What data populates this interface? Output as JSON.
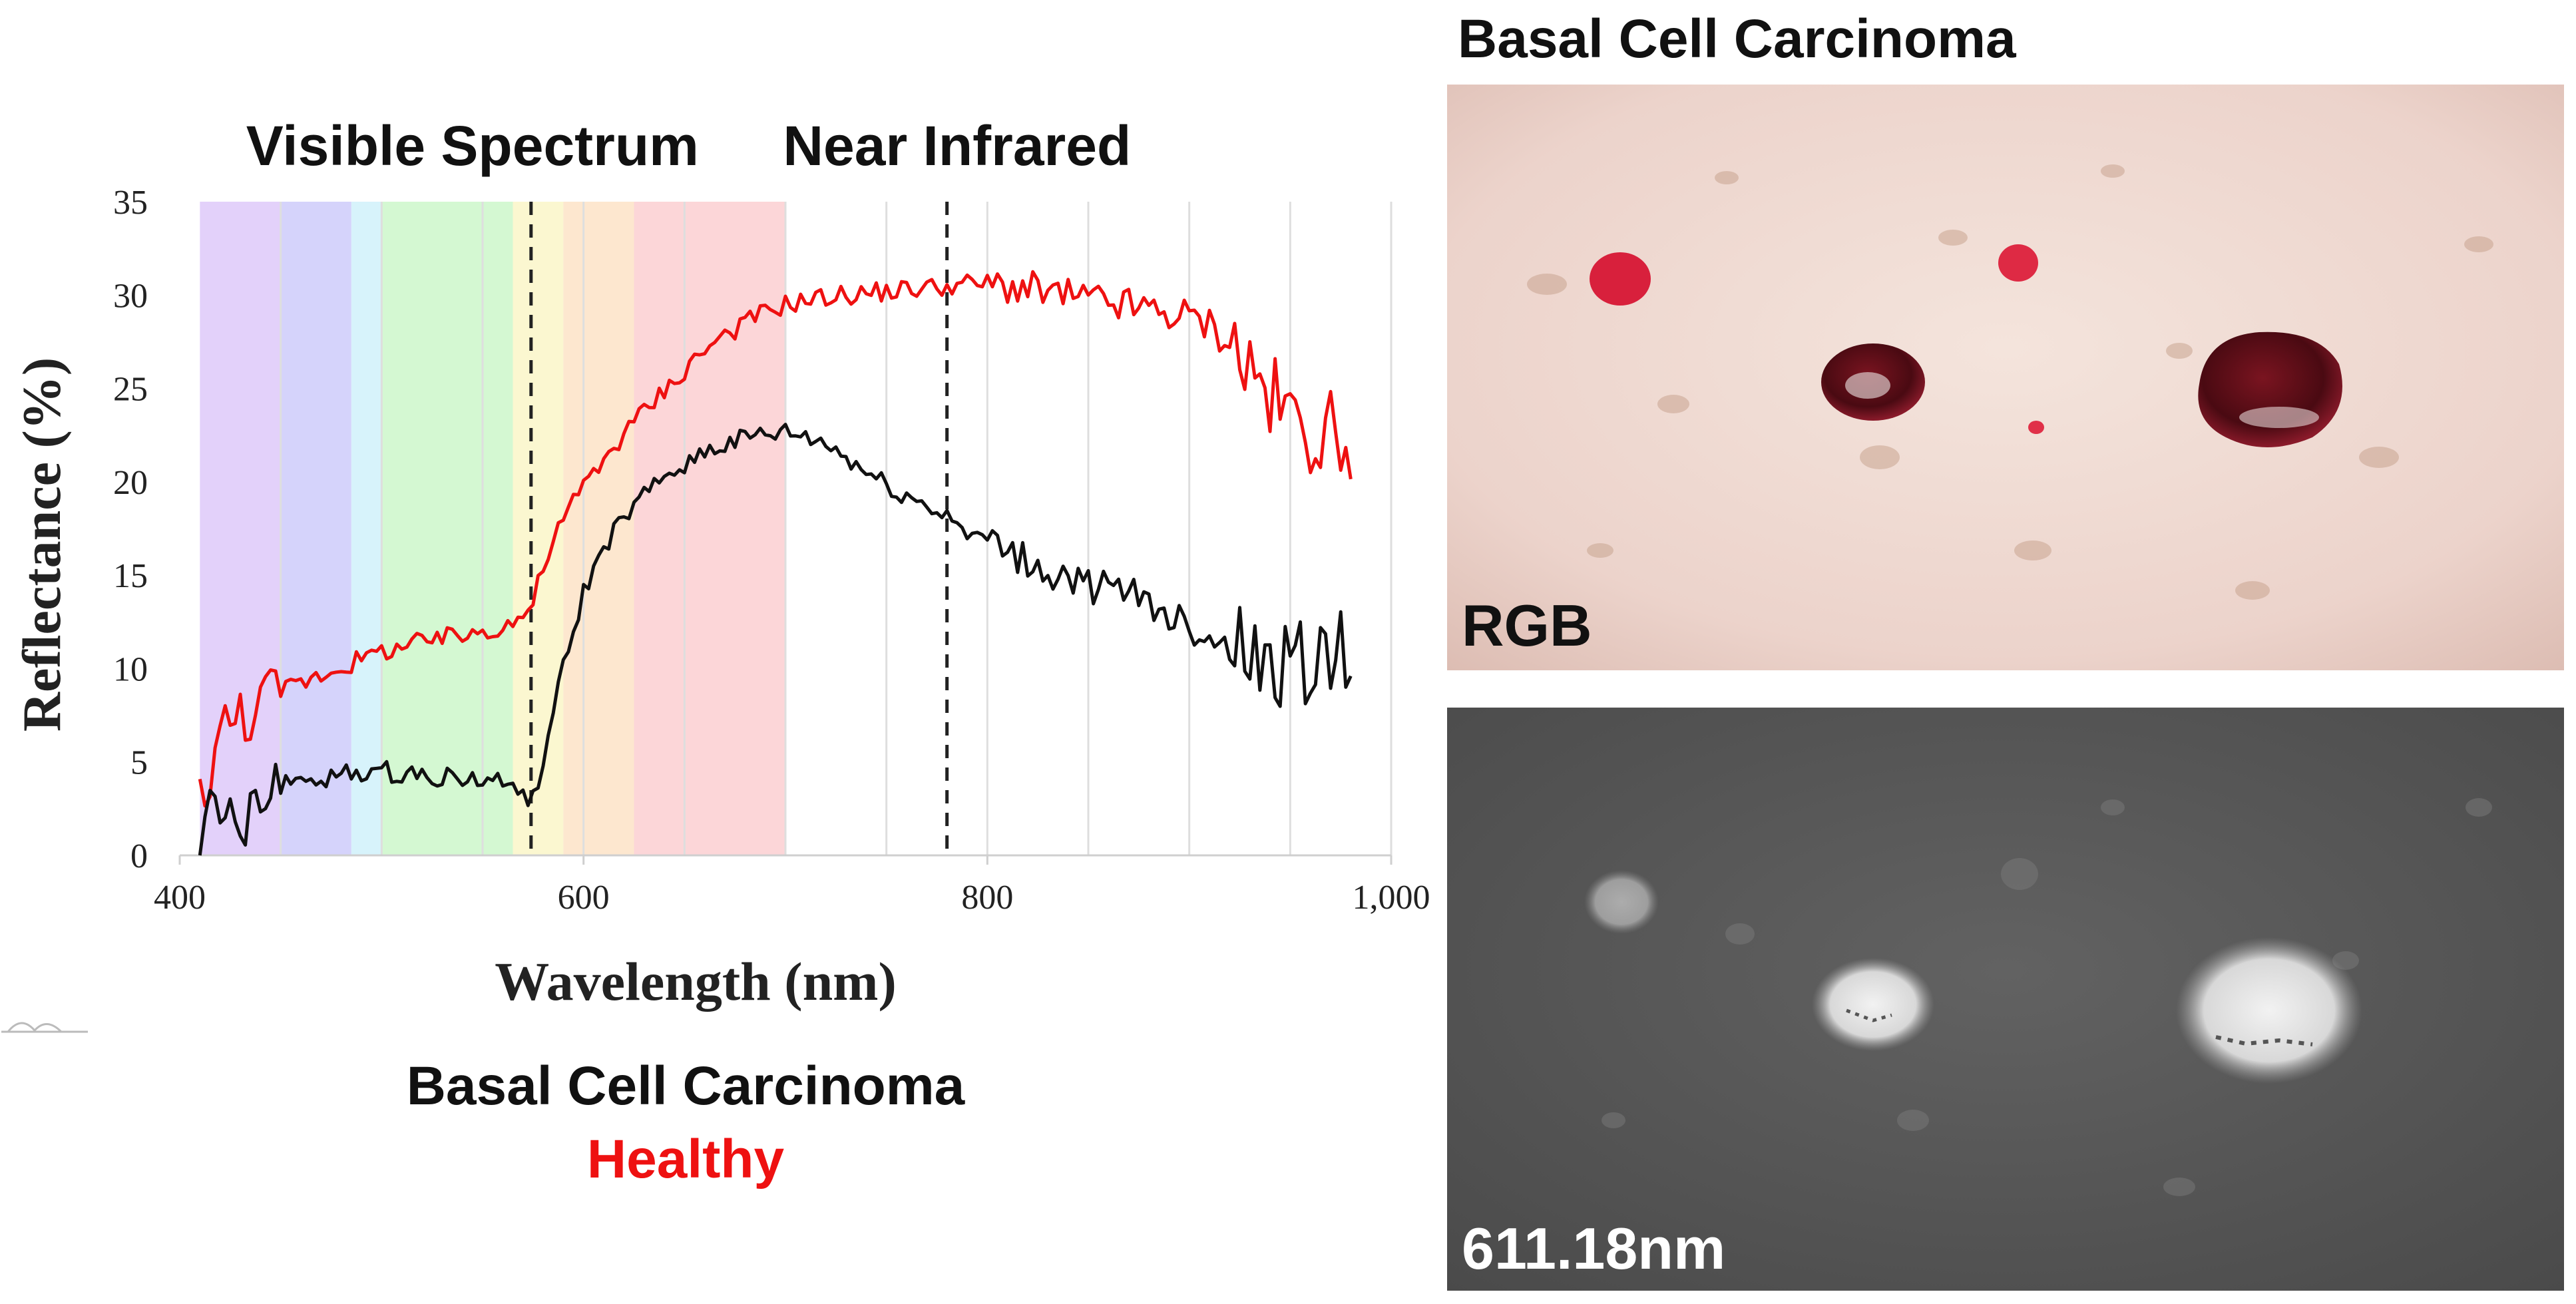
{
  "chart_data": {
    "type": "line",
    "xlabel": "Wavelength (nm)",
    "ylabel": "Reflectance (%)",
    "xlim": [
      400,
      1000
    ],
    "ylim": [
      0,
      35
    ],
    "xticks": [
      400,
      600,
      800,
      1000
    ],
    "xtick_labels": [
      "400",
      "600",
      "800",
      "1,000"
    ],
    "yticks": [
      0,
      5,
      10,
      15,
      20,
      25,
      30,
      35
    ],
    "grid": "vertical",
    "region_labels": [
      {
        "id": "visible",
        "text": "Visible Spectrum",
        "center_x": 545
      },
      {
        "id": "nir",
        "text": "Near Infrared",
        "center_x": 785
      }
    ],
    "dashed_lines_x": [
      574,
      780
    ],
    "color_bands": [
      {
        "from": 410,
        "to": 450,
        "color": "#e3d1fa"
      },
      {
        "from": 450,
        "to": 485,
        "color": "#d5d3fb"
      },
      {
        "from": 485,
        "to": 500,
        "color": "#d7f3fb"
      },
      {
        "from": 500,
        "to": 565,
        "color": "#d4f8d2"
      },
      {
        "from": 565,
        "to": 590,
        "color": "#fbf7d0"
      },
      {
        "from": 590,
        "to": 625,
        "color": "#fde7cf"
      },
      {
        "from": 625,
        "to": 700,
        "color": "#fcd6d8"
      }
    ],
    "series": [
      {
        "name": "Healthy",
        "color": "#ee1111",
        "x": [
          410,
          420,
          430,
          440,
          450,
          460,
          470,
          480,
          490,
          500,
          510,
          520,
          530,
          540,
          550,
          560,
          570,
          575,
          580,
          590,
          600,
          610,
          620,
          630,
          640,
          650,
          660,
          670,
          680,
          690,
          700,
          710,
          720,
          730,
          740,
          750,
          760,
          770,
          780,
          790,
          800,
          810,
          820,
          830,
          840,
          850,
          860,
          870,
          880,
          890,
          900,
          910,
          920,
          930,
          940,
          950,
          960,
          970,
          980
        ],
        "values": [
          3.0,
          6.5,
          7.5,
          8.2,
          8.8,
          9.3,
          9.7,
          10.1,
          10.5,
          10.9,
          11.2,
          11.4,
          11.6,
          11.8,
          12.0,
          12.3,
          12.8,
          13.5,
          15.5,
          18.0,
          19.8,
          21.2,
          22.6,
          23.8,
          24.9,
          26.0,
          27.1,
          27.9,
          28.5,
          29.1,
          29.5,
          29.7,
          29.9,
          30.0,
          30.1,
          30.2,
          30.3,
          30.4,
          30.5,
          30.6,
          30.6,
          30.5,
          30.3,
          30.1,
          29.9,
          29.7,
          29.6,
          29.4,
          29.2,
          29.0,
          28.8,
          28.4,
          27.5,
          26.0,
          24.5,
          23.5,
          22.8,
          22.5,
          22.5
        ]
      },
      {
        "name": "Basal Cell Carcinoma",
        "color": "#111111",
        "x": [
          410,
          415,
          420,
          425,
          430,
          440,
          450,
          460,
          470,
          480,
          490,
          500,
          510,
          520,
          530,
          540,
          550,
          560,
          570,
          575,
          580,
          590,
          600,
          610,
          620,
          630,
          640,
          650,
          660,
          670,
          680,
          690,
          700,
          710,
          720,
          730,
          740,
          750,
          760,
          770,
          780,
          790,
          800,
          810,
          820,
          830,
          840,
          850,
          860,
          870,
          880,
          890,
          900,
          910,
          920,
          930,
          940,
          950,
          960,
          970,
          980
        ],
        "values": [
          1.5,
          4.5,
          0.5,
          2.5,
          0.3,
          3.0,
          3.8,
          4.0,
          4.2,
          4.3,
          4.4,
          4.5,
          4.4,
          4.3,
          4.2,
          4.1,
          4.0,
          3.9,
          3.4,
          3.0,
          5.0,
          10.0,
          14.0,
          16.5,
          18.0,
          19.2,
          20.2,
          21.0,
          21.6,
          22.0,
          22.3,
          22.5,
          22.6,
          22.4,
          22.0,
          21.3,
          20.5,
          19.8,
          19.2,
          18.7,
          18.2,
          17.5,
          16.8,
          16.2,
          15.6,
          15.1,
          14.8,
          14.5,
          14.2,
          13.9,
          13.5,
          13.0,
          12.4,
          11.8,
          11.2,
          10.6,
          10.2,
          10.0,
          10.2,
          10.6,
          11.0
        ]
      }
    ]
  },
  "legend": {
    "bcc": "Basal Cell Carcinoma",
    "healthy": "Healthy"
  },
  "right_panel": {
    "title": "Basal Cell Carcinoma",
    "rgb_label": "RGB",
    "band_label": "611.18nm"
  },
  "colors": {
    "healthy": "#ee1111",
    "bcc": "#111111",
    "skin": "#ecd6cf",
    "gray_bg": "#5b5b5b"
  }
}
